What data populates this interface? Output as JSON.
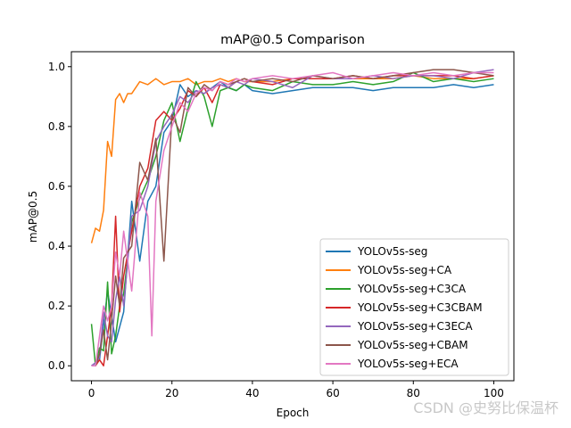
{
  "chart_data": {
    "type": "line",
    "title": "mAP@0.5 Comparison",
    "xlabel": "Epoch",
    "ylabel": "mAP@0.5",
    "xlim": [
      -5,
      105
    ],
    "ylim": [
      -0.05,
      1.05
    ],
    "xticks": [
      0,
      20,
      40,
      60,
      80,
      100
    ],
    "yticks": [
      0.0,
      0.2,
      0.4,
      0.6,
      0.8,
      1.0
    ],
    "legend_position": "lower-right",
    "series": [
      {
        "name": "YOLOv5s-seg",
        "color": "#1f77b4",
        "x": [
          0,
          2,
          4,
          6,
          8,
          10,
          12,
          14,
          16,
          18,
          20,
          22,
          24,
          26,
          28,
          30,
          32,
          34,
          36,
          38,
          40,
          45,
          50,
          55,
          60,
          65,
          70,
          75,
          80,
          85,
          90,
          95,
          100
        ],
        "y": [
          0.0,
          0.02,
          0.25,
          0.08,
          0.18,
          0.55,
          0.35,
          0.55,
          0.6,
          0.78,
          0.82,
          0.94,
          0.9,
          0.92,
          0.91,
          0.93,
          0.95,
          0.93,
          0.92,
          0.94,
          0.92,
          0.91,
          0.92,
          0.93,
          0.93,
          0.93,
          0.92,
          0.93,
          0.93,
          0.93,
          0.94,
          0.93,
          0.94
        ]
      },
      {
        "name": "YOLOv5s-seg+CA",
        "color": "#ff7f0e",
        "x": [
          0,
          1,
          2,
          3,
          4,
          5,
          6,
          7,
          8,
          9,
          10,
          12,
          14,
          16,
          18,
          20,
          22,
          24,
          26,
          28,
          30,
          32,
          34,
          36,
          38,
          40,
          45,
          50,
          55,
          60,
          65,
          70,
          75,
          80,
          85,
          90,
          95,
          100
        ],
        "y": [
          0.41,
          0.46,
          0.45,
          0.52,
          0.75,
          0.7,
          0.89,
          0.91,
          0.88,
          0.91,
          0.91,
          0.95,
          0.94,
          0.96,
          0.94,
          0.95,
          0.95,
          0.96,
          0.94,
          0.95,
          0.95,
          0.96,
          0.95,
          0.96,
          0.95,
          0.95,
          0.95,
          0.96,
          0.96,
          0.96,
          0.96,
          0.96,
          0.96,
          0.97,
          0.96,
          0.96,
          0.96,
          0.97
        ]
      },
      {
        "name": "YOLOv5s-seg+C3CA",
        "color": "#2ca02c",
        "x": [
          0,
          1,
          2,
          3,
          4,
          5,
          6,
          7,
          8,
          10,
          12,
          14,
          16,
          18,
          20,
          22,
          24,
          26,
          28,
          30,
          32,
          34,
          36,
          38,
          40,
          45,
          50,
          55,
          60,
          65,
          70,
          75,
          80,
          85,
          90,
          95,
          100
        ],
        "y": [
          0.14,
          0.0,
          0.06,
          0.05,
          0.28,
          0.04,
          0.1,
          0.2,
          0.24,
          0.48,
          0.56,
          0.62,
          0.7,
          0.82,
          0.88,
          0.75,
          0.86,
          0.95,
          0.9,
          0.8,
          0.92,
          0.93,
          0.92,
          0.94,
          0.93,
          0.92,
          0.95,
          0.94,
          0.94,
          0.95,
          0.94,
          0.95,
          0.98,
          0.95,
          0.96,
          0.95,
          0.96
        ]
      },
      {
        "name": "YOLOv5s-seg+C3CBAM",
        "color": "#d62728",
        "x": [
          0,
          1,
          2,
          3,
          4,
          5,
          6,
          7,
          8,
          10,
          12,
          14,
          16,
          18,
          20,
          22,
          24,
          26,
          28,
          30,
          32,
          34,
          36,
          38,
          40,
          45,
          50,
          55,
          60,
          65,
          70,
          75,
          80,
          85,
          90,
          95,
          100
        ],
        "y": [
          0.0,
          0.0,
          0.02,
          0.0,
          0.1,
          0.2,
          0.5,
          0.18,
          0.3,
          0.45,
          0.6,
          0.66,
          0.82,
          0.85,
          0.82,
          0.86,
          0.92,
          0.9,
          0.93,
          0.88,
          0.94,
          0.93,
          0.95,
          0.96,
          0.95,
          0.94,
          0.96,
          0.96,
          0.96,
          0.97,
          0.96,
          0.97,
          0.97,
          0.97,
          0.97,
          0.96,
          0.97
        ]
      },
      {
        "name": "YOLOv5s-seg+C3ECA",
        "color": "#9467bd",
        "x": [
          0,
          1,
          2,
          3,
          4,
          5,
          6,
          7,
          8,
          10,
          12,
          14,
          16,
          18,
          20,
          22,
          24,
          26,
          28,
          30,
          32,
          34,
          36,
          38,
          40,
          45,
          50,
          55,
          60,
          65,
          70,
          75,
          80,
          85,
          90,
          95,
          100
        ],
        "y": [
          0.0,
          0.01,
          0.03,
          0.18,
          0.1,
          0.08,
          0.22,
          0.3,
          0.2,
          0.5,
          0.52,
          0.6,
          0.75,
          0.8,
          0.84,
          0.9,
          0.88,
          0.92,
          0.91,
          0.93,
          0.94,
          0.93,
          0.95,
          0.94,
          0.96,
          0.95,
          0.93,
          0.97,
          0.96,
          0.96,
          0.97,
          0.96,
          0.97,
          0.97,
          0.96,
          0.98,
          0.99
        ]
      },
      {
        "name": "YOLOv5s-seg+CBAM",
        "color": "#8c564b",
        "x": [
          0,
          1,
          2,
          3,
          4,
          5,
          6,
          7,
          8,
          10,
          12,
          14,
          16,
          18,
          20,
          22,
          24,
          26,
          28,
          30,
          32,
          34,
          36,
          38,
          40,
          45,
          50,
          55,
          60,
          65,
          70,
          75,
          80,
          85,
          90,
          95,
          100
        ],
        "y": [
          0.0,
          0.0,
          0.04,
          0.12,
          0.02,
          0.15,
          0.3,
          0.2,
          0.36,
          0.4,
          0.68,
          0.62,
          0.76,
          0.35,
          0.84,
          0.78,
          0.93,
          0.9,
          0.94,
          0.92,
          0.95,
          0.94,
          0.95,
          0.96,
          0.95,
          0.96,
          0.95,
          0.97,
          0.96,
          0.97,
          0.96,
          0.97,
          0.98,
          0.99,
          0.99,
          0.98,
          0.97
        ]
      },
      {
        "name": "YOLOv5s-seg+ECA",
        "color": "#e377c2",
        "x": [
          0,
          1,
          2,
          3,
          4,
          5,
          6,
          7,
          8,
          10,
          12,
          14,
          15,
          16,
          18,
          20,
          22,
          24,
          26,
          28,
          30,
          32,
          34,
          36,
          38,
          40,
          45,
          50,
          55,
          60,
          65,
          70,
          75,
          80,
          85,
          90,
          95,
          100
        ],
        "y": [
          0.0,
          0.0,
          0.1,
          0.2,
          0.15,
          0.2,
          0.38,
          0.3,
          0.45,
          0.25,
          0.58,
          0.5,
          0.1,
          0.55,
          0.72,
          0.8,
          0.88,
          0.85,
          0.91,
          0.93,
          0.92,
          0.95,
          0.94,
          0.96,
          0.95,
          0.96,
          0.97,
          0.96,
          0.97,
          0.98,
          0.96,
          0.97,
          0.98,
          0.97,
          0.98,
          0.97,
          0.98,
          0.98
        ]
      }
    ]
  },
  "watermark": "CSDN @史努比保温杯"
}
